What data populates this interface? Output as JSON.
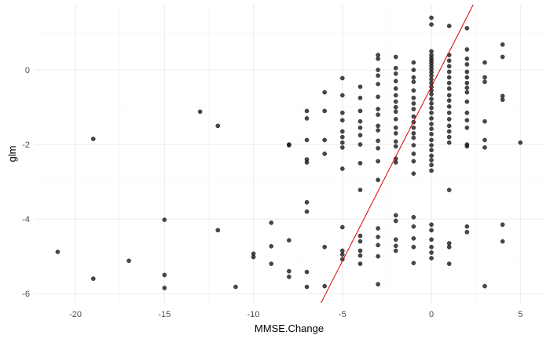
{
  "chart_data": {
    "type": "scatter",
    "title": "",
    "xlabel": "MMSE.Change",
    "ylabel": "glm",
    "xlim": [
      -22.3,
      6.4
    ],
    "ylim": [
      -6.25,
      1.75
    ],
    "x_ticks": [
      -20,
      -15,
      -10,
      -5,
      0,
      5
    ],
    "y_ticks": [
      -6,
      -4,
      -2,
      0
    ],
    "x_tick_labels": [
      "-20",
      "-15",
      "-10",
      "-5",
      "0",
      "5"
    ],
    "y_tick_labels": [
      "-6",
      "-4",
      "-2",
      "0"
    ],
    "grid": true,
    "legend": "none",
    "colors": {
      "point": "#1a1a1a",
      "fit_line": "#dd0000",
      "grid_major": "#ebebeb",
      "grid_minor": "#f4f4f4"
    },
    "series": [
      {
        "points": [
          [
            -21,
            -4.88
          ],
          [
            -19,
            -1.85
          ],
          [
            -19,
            -5.6
          ],
          [
            -17,
            -5.12
          ],
          [
            -15,
            -4.02
          ],
          [
            -15,
            -5.5
          ],
          [
            -15,
            -5.85
          ],
          [
            -13,
            -1.12
          ],
          [
            -12,
            -1.5
          ],
          [
            -12,
            -4.3
          ],
          [
            -11,
            -5.82
          ],
          [
            -10,
            -4.93
          ],
          [
            -10,
            -5.02
          ],
          [
            -9,
            -4.1
          ],
          [
            -9,
            -4.73
          ],
          [
            -9,
            -5.2
          ],
          [
            -8,
            -2.0
          ],
          [
            -8,
            -2.02
          ],
          [
            -8,
            -4.57
          ],
          [
            -8,
            -5.4
          ],
          [
            -8,
            -5.55
          ],
          [
            -7,
            -1.1
          ],
          [
            -7,
            -1.3
          ],
          [
            -7,
            -1.88
          ],
          [
            -7,
            -2.4
          ],
          [
            -7,
            -2.48
          ],
          [
            -7,
            -3.55
          ],
          [
            -7,
            -3.8
          ],
          [
            -7,
            -5.42
          ],
          [
            -7,
            -5.82
          ],
          [
            -6,
            -0.6
          ],
          [
            -6,
            -1.1
          ],
          [
            -6,
            -1.88
          ],
          [
            -6,
            -2.25
          ],
          [
            -6,
            -4.75
          ],
          [
            -6,
            -5.8
          ],
          [
            -5,
            -0.22
          ],
          [
            -5,
            -0.68
          ],
          [
            -5,
            -1.15
          ],
          [
            -5,
            -1.35
          ],
          [
            -5,
            -1.65
          ],
          [
            -5,
            -1.8
          ],
          [
            -5,
            -1.95
          ],
          [
            -5,
            -2.08
          ],
          [
            -5,
            -2.65
          ],
          [
            -5,
            -4.22
          ],
          [
            -5,
            -4.85
          ],
          [
            -5,
            -4.95
          ],
          [
            -5,
            -5.08
          ],
          [
            -4,
            -0.45
          ],
          [
            -4,
            -0.75
          ],
          [
            -4,
            -1.1
          ],
          [
            -4,
            -1.38
          ],
          [
            -4,
            -1.55
          ],
          [
            -4,
            -1.75
          ],
          [
            -4,
            -2.0
          ],
          [
            -4,
            -2.5
          ],
          [
            -4,
            -3.22
          ],
          [
            -4,
            -4.45
          ],
          [
            -4,
            -4.6
          ],
          [
            -4,
            -4.85
          ],
          [
            -4,
            -4.98
          ],
          [
            -4,
            -5.2
          ],
          [
            -3,
            0.4
          ],
          [
            -3,
            0.3
          ],
          [
            -3,
            0.0
          ],
          [
            -3,
            -0.15
          ],
          [
            -3,
            -0.38
          ],
          [
            -3,
            -0.72
          ],
          [
            -3,
            -1.05
          ],
          [
            -3,
            -1.2
          ],
          [
            -3,
            -1.5
          ],
          [
            -3,
            -1.62
          ],
          [
            -3,
            -1.9
          ],
          [
            -3,
            -2.1
          ],
          [
            -3,
            -2.45
          ],
          [
            -3,
            -2.95
          ],
          [
            -3,
            -4.25
          ],
          [
            -3,
            -4.48
          ],
          [
            -3,
            -4.7
          ],
          [
            -3,
            -5.0
          ],
          [
            -3,
            -5.75
          ],
          [
            -2,
            0.35
          ],
          [
            -2,
            0.05
          ],
          [
            -2,
            -0.1
          ],
          [
            -2,
            -0.3
          ],
          [
            -2,
            -0.5
          ],
          [
            -2,
            -0.68
          ],
          [
            -2,
            -0.85
          ],
          [
            -2,
            -1.0
          ],
          [
            -2,
            -1.12
          ],
          [
            -2,
            -1.32
          ],
          [
            -2,
            -1.55
          ],
          [
            -2,
            -1.7
          ],
          [
            -2,
            -1.92
          ],
          [
            -2,
            -2.05
          ],
          [
            -2,
            -2.38
          ],
          [
            -2,
            -2.48
          ],
          [
            -2,
            -3.9
          ],
          [
            -2,
            -4.05
          ],
          [
            -2,
            -4.55
          ],
          [
            -2,
            -4.72
          ],
          [
            -2,
            -4.85
          ],
          [
            -1,
            0.2
          ],
          [
            -1,
            0.0
          ],
          [
            -1,
            -0.2
          ],
          [
            -1,
            -0.32
          ],
          [
            -1,
            -0.55
          ],
          [
            -1,
            -0.75
          ],
          [
            -1,
            -0.9
          ],
          [
            -1,
            -1.05
          ],
          [
            -1,
            -1.25
          ],
          [
            -1,
            -1.4
          ],
          [
            -1,
            -1.55
          ],
          [
            -1,
            -1.7
          ],
          [
            -1,
            -1.82
          ],
          [
            -1,
            -2.02
          ],
          [
            -1,
            -2.25
          ],
          [
            -1,
            -2.45
          ],
          [
            -1,
            -2.78
          ],
          [
            -1,
            -3.95
          ],
          [
            -1,
            -4.2
          ],
          [
            -1,
            -4.52
          ],
          [
            -1,
            -4.75
          ],
          [
            -1,
            -5.18
          ],
          [
            0,
            1.4
          ],
          [
            0,
            1.22
          ],
          [
            0,
            0.5
          ],
          [
            0,
            0.4
          ],
          [
            0,
            0.32
          ],
          [
            0,
            0.25
          ],
          [
            0,
            0.18
          ],
          [
            0,
            0.1
          ],
          [
            0,
            0.02
          ],
          [
            0,
            -0.06
          ],
          [
            0,
            -0.15
          ],
          [
            0,
            -0.25
          ],
          [
            0,
            -0.35
          ],
          [
            0,
            -0.45
          ],
          [
            0,
            -0.55
          ],
          [
            0,
            -0.65
          ],
          [
            0,
            -0.78
          ],
          [
            0,
            -0.9
          ],
          [
            0,
            -1.02
          ],
          [
            0,
            -1.15
          ],
          [
            0,
            -1.3
          ],
          [
            0,
            -1.45
          ],
          [
            0,
            -1.58
          ],
          [
            0,
            -1.72
          ],
          [
            0,
            -1.88
          ],
          [
            0,
            -2.02
          ],
          [
            0,
            -2.15
          ],
          [
            0,
            -2.3
          ],
          [
            0,
            -2.42
          ],
          [
            0,
            -2.55
          ],
          [
            0,
            -2.7
          ],
          [
            0,
            -4.15
          ],
          [
            0,
            -4.3
          ],
          [
            0,
            -4.55
          ],
          [
            0,
            -4.75
          ],
          [
            0,
            -4.9
          ],
          [
            0,
            -5.05
          ],
          [
            1,
            1.18
          ],
          [
            1,
            0.4
          ],
          [
            1,
            0.25
          ],
          [
            1,
            0.1
          ],
          [
            1,
            -0.05
          ],
          [
            1,
            -0.2
          ],
          [
            1,
            -0.35
          ],
          [
            1,
            -0.5
          ],
          [
            1,
            -0.68
          ],
          [
            1,
            -0.82
          ],
          [
            1,
            -0.98
          ],
          [
            1,
            -1.15
          ],
          [
            1,
            -1.32
          ],
          [
            1,
            -1.5
          ],
          [
            1,
            -1.65
          ],
          [
            1,
            -1.8
          ],
          [
            1,
            -1.95
          ],
          [
            1,
            -3.22
          ],
          [
            1,
            -4.65
          ],
          [
            1,
            -4.75
          ],
          [
            1,
            -5.2
          ],
          [
            2,
            1.12
          ],
          [
            2,
            0.55
          ],
          [
            2,
            0.3
          ],
          [
            2,
            0.15
          ],
          [
            2,
            -0.05
          ],
          [
            2,
            -0.2
          ],
          [
            2,
            -0.35
          ],
          [
            2,
            -0.48
          ],
          [
            2,
            -0.6
          ],
          [
            2,
            -0.85
          ],
          [
            2,
            -1.15
          ],
          [
            2,
            -1.35
          ],
          [
            2,
            -1.55
          ],
          [
            2,
            -2.0
          ],
          [
            2,
            -2.05
          ],
          [
            2,
            -4.2
          ],
          [
            2,
            -4.35
          ],
          [
            3,
            0.2
          ],
          [
            3,
            -0.2
          ],
          [
            3,
            -0.32
          ],
          [
            3,
            -1.38
          ],
          [
            3,
            -1.88
          ],
          [
            3,
            -2.08
          ],
          [
            3,
            -5.8
          ],
          [
            4,
            0.68
          ],
          [
            4,
            0.35
          ],
          [
            4,
            -0.7
          ],
          [
            4,
            -0.8
          ],
          [
            4,
            -4.15
          ],
          [
            4,
            -4.6
          ],
          [
            5,
            -1.95
          ]
        ]
      }
    ],
    "fit_line": {
      "x": [
        -6.2,
        2.35
      ],
      "y": [
        -6.25,
        1.75
      ]
    }
  }
}
